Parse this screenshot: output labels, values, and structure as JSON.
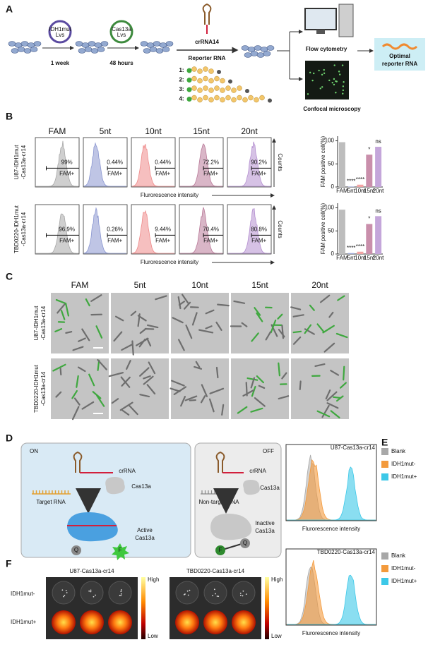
{
  "a": {
    "label": "A",
    "plasmid1": [
      "IDH1mut",
      "Lvs"
    ],
    "plasmid2": [
      "Cas13a",
      "Lvs"
    ],
    "step1": "1 week",
    "step2": "48 hours",
    "crrna": "crRNA14",
    "reporter": "Reporter RNA",
    "reporters": [
      "1:",
      "2:",
      "3:",
      "4:"
    ],
    "flow": "Flow cytometry",
    "confocal": "Confocal microscopy",
    "optimal": [
      "Optimal",
      "reporter RNA"
    ]
  },
  "b": {
    "label": "B",
    "columns": [
      "FAM",
      "5nt",
      "10nt",
      "15nt",
      "20nt"
    ],
    "gate": "FAM+",
    "xlabel": "Flurorescence intensity",
    "ylabel": "Counts",
    "rows": [
      {
        "name": [
          "U87-IDH1mut",
          "-Cas13a-cr14"
        ],
        "percents": [
          "99%",
          "0.44%",
          "0.44%",
          "72.2%",
          "90.2%"
        ]
      },
      {
        "name": [
          "TBD0220-IDH1mut",
          "-Cas13a-cr14"
        ],
        "percents": [
          "96.9%",
          "0.26%",
          "9.44%",
          "70.4%",
          "80.8%"
        ]
      }
    ],
    "charts": [
      {
        "type": "bar",
        "ylabel": "FAM positive cell(%)",
        "categories": [
          "FAM",
          "5nt",
          "10nt",
          "15nt",
          "20nt"
        ],
        "values": [
          97,
          1,
          5,
          70,
          87
        ],
        "colors": [
          "#bdbdbd",
          "#9fa9d8",
          "#f2a3a3",
          "#c98fab",
          "#c4a6da"
        ],
        "significance": [
          null,
          "****",
          "****",
          "*",
          "ns"
        ],
        "ylim": [
          0,
          110
        ],
        "yticks": [
          0,
          50,
          100
        ]
      },
      {
        "type": "bar",
        "ylabel": "FAM positive cell(%)",
        "categories": [
          "FAM",
          "5nt",
          "10nt",
          "15nt",
          "20nt"
        ],
        "values": [
          96,
          2,
          5,
          65,
          82
        ],
        "colors": [
          "#bdbdbd",
          "#9fa9d8",
          "#f2a3a3",
          "#c98fab",
          "#c4a6da"
        ],
        "significance": [
          null,
          "****",
          "****",
          "*",
          "ns"
        ],
        "ylim": [
          0,
          110
        ],
        "yticks": [
          0,
          50,
          100
        ]
      }
    ]
  },
  "c": {
    "label": "C",
    "columns": [
      "FAM",
      "5nt",
      "10nt",
      "15nt",
      "20nt"
    ],
    "rows": [
      [
        "U87-IDH1mut",
        "-Cas13a-cr14"
      ],
      [
        "TBD0220-IDH1mut",
        "-Cas13a-cr14"
      ]
    ]
  },
  "d": {
    "label": "D",
    "on": {
      "title": "ON",
      "crrna": "crRNA",
      "target": "Target RNA",
      "enzyme": "Cas13a",
      "active": [
        "Active",
        "Cas13a"
      ],
      "quencher": "Q",
      "fluor": "F"
    },
    "off": {
      "title": "OFF",
      "crrna": "crRNA",
      "target": "Non-target RNA",
      "enzyme": "Cas13a",
      "inactive": [
        "Inactive",
        "Cas13a"
      ],
      "quencher": "Q",
      "fluor": "F"
    }
  },
  "e": {
    "label": "E",
    "legend": [
      "Blank",
      "IDH1mut-",
      "IDH1mut+"
    ],
    "legend_colors": [
      "#a8a8a8",
      "#f39a3c",
      "#3cc8e8"
    ],
    "plots": [
      "U87-Cas13a-cr14",
      "TBD0220-Cas13a-cr14"
    ],
    "xlabel": "Flurorescence intensity"
  },
  "f": {
    "label": "F",
    "plates": [
      "U87-Cas13a-cr14",
      "TBD0220-Cas13a-cr14"
    ],
    "rows": [
      "IDH1mut-",
      "IDH1mut+"
    ],
    "scale": [
      "High",
      "Low"
    ]
  }
}
